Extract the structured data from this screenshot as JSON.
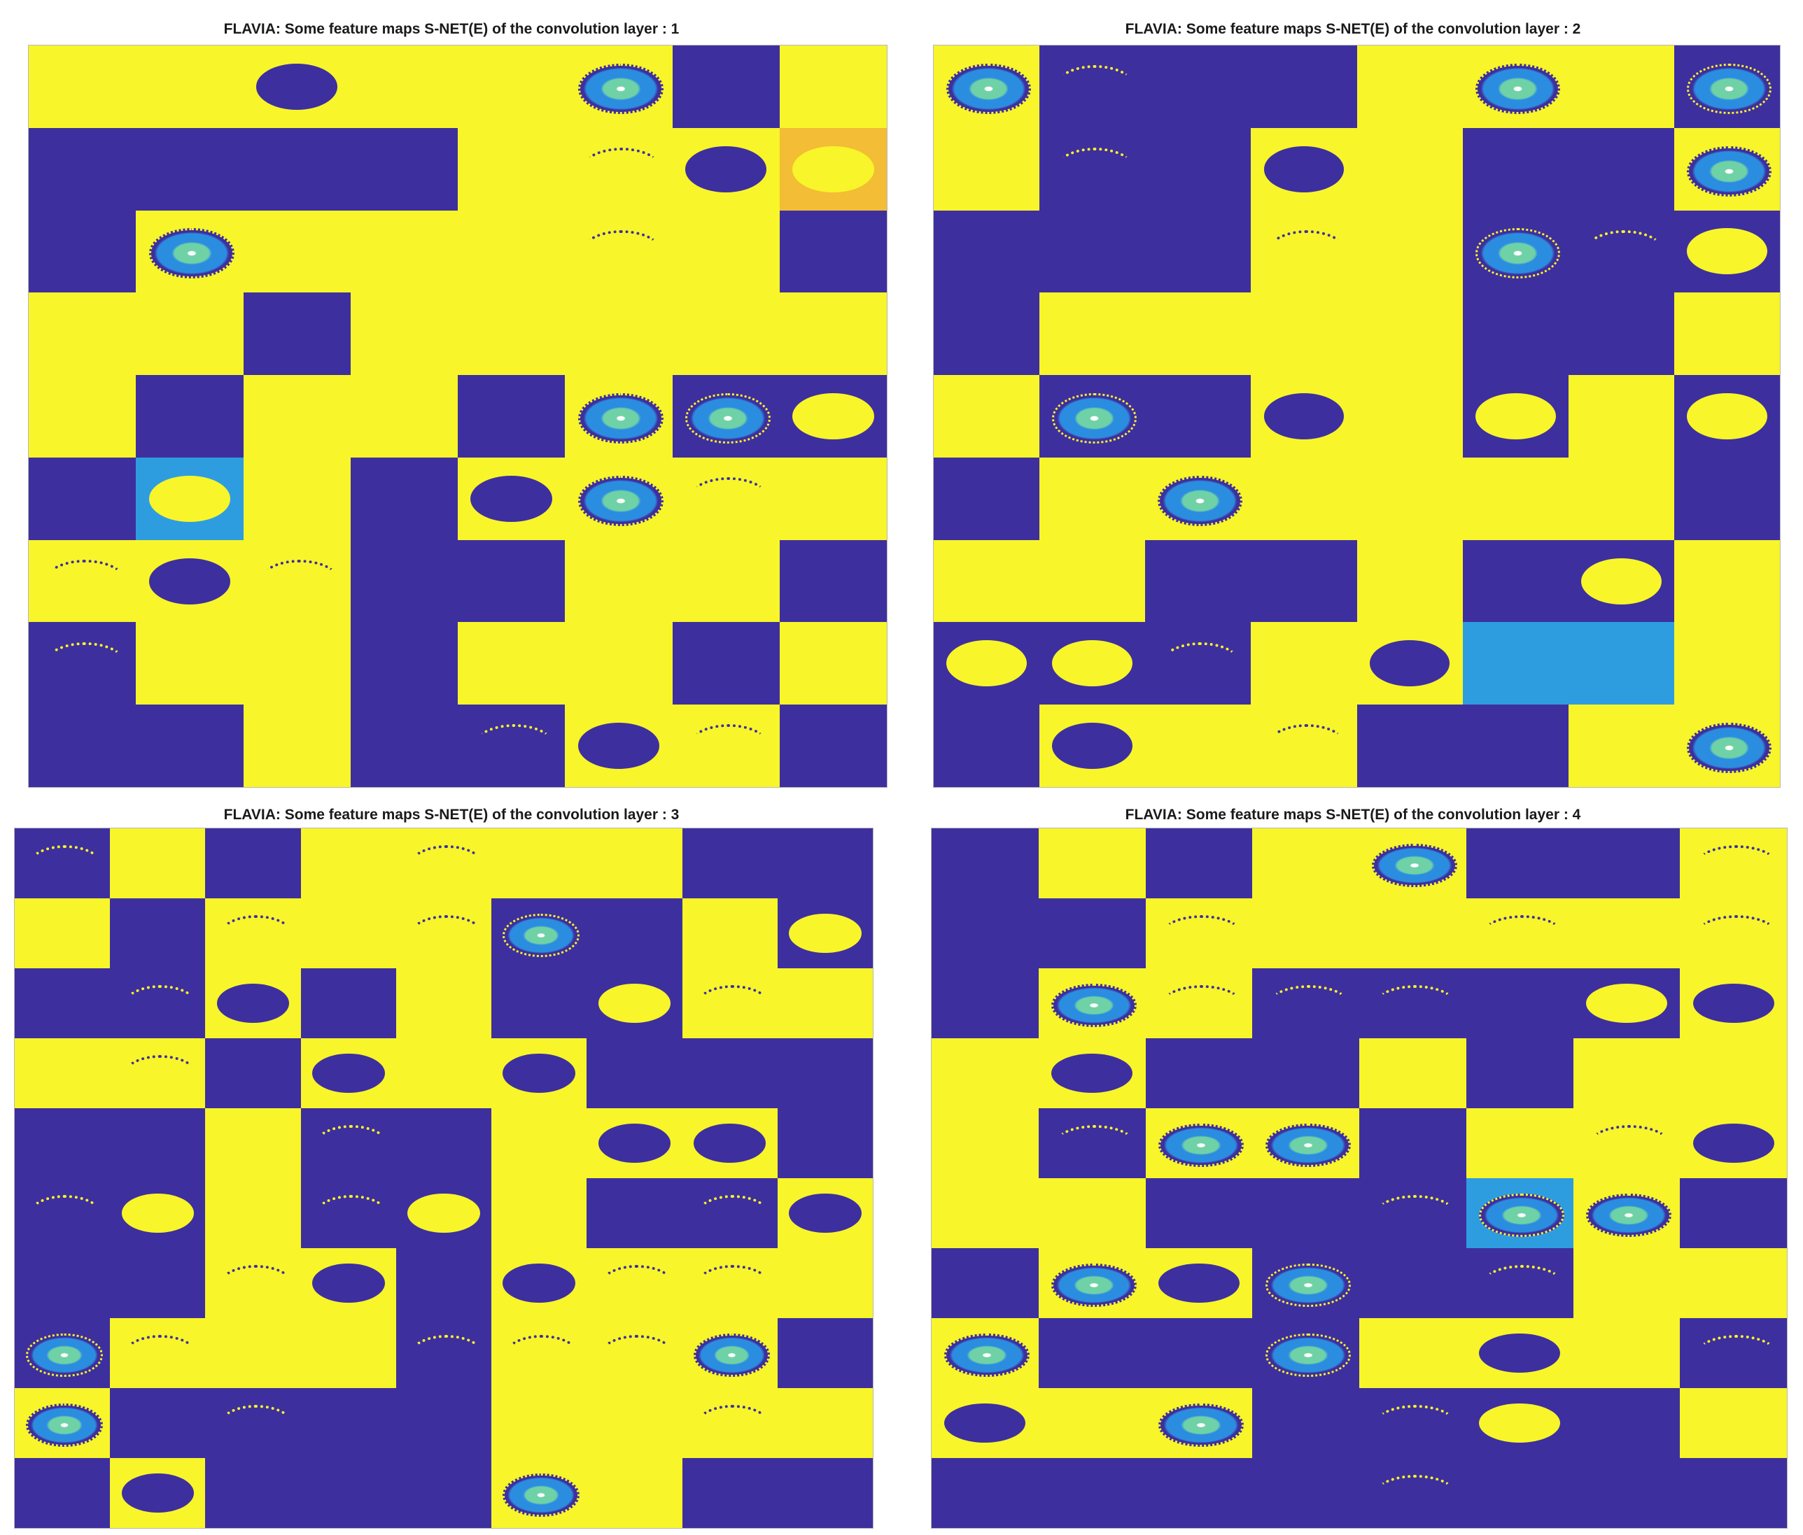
{
  "panels": [
    {
      "title": "FLAVIA: Some feature maps S-NET(E) of the convolution layer : 1",
      "rows": [
        "yyyyyydy",
        "ddddyyyo",
        "dyyyyyyd",
        "yydyyyyy",
        "ydyydydd",
        "dcydyyyy",
        "yyyddyyd",
        "dyydyydy",
        "ddyddyyd"
      ],
      "leaves": [
        "-,-,dk,-,-,mx,-,-",
        "-,-,-,-,-,ar,dk,yl",
        "-,mx,-,-,-,ar,-,-",
        "-,-,-,-,-,yl,-,-",
        "yl,-,-,-,-,mx,mx,yl",
        "-,yl,-,-,dk,mx,ar,-",
        "ar,dk,ar,-,-,-,-,-",
        "ar,yl,-,-,-,yl,-,-",
        "-,-,-,dk,ar,dk,ar,-"
      ]
    },
    {
      "title": "FLAVIA: Some feature maps S-NET(E) of the convolution layer : 2",
      "rows": [
        "ydddyyyd",
        "yddyyddy",
        "dddyyddd",
        "dyyyyddy",
        "yddyydyd",
        "dyyyyyyd",
        "yyddyddy",
        "dddyyccy",
        "dyyyddyy"
      ],
      "leaves": [
        "mx,ar,-,-,-,mx,-,mx",
        "-,ar,-,dk,-,-,-,mx",
        "-,-,-,ar,yl,mx,ar,yl",
        "-,-,yl,-,-,-,-,-",
        "-,mx,-,dk,-,yl,-,yl",
        "-,-,mx,-,-,-,yl,-",
        "-,-,-,-,-,-,yl,-",
        "yl,yl,ar,-,dk,-,-,-",
        "-,dk,-,ar,-,dk,-,mx"
      ]
    },
    {
      "title": "FLAVIA: Some feature maps S-NET(E) of the convolution layer : 3",
      "rows": [
        "dydyyyydd",
        "ydyyyddyd",
        "ddydyddyy",
        "yydyyyddd",
        "ddyddyyyd",
        "ddyddyddy",
        "ddyydyyyy",
        "dyyydyyyd",
        "yddddyyyy",
        "dydddyydd"
      ],
      "leaves": [
        "ar,-,dk,yl,ar,-,-,-,-",
        "-,-,ar,-,ar,mx,dk,-,yl",
        "-,ar,dk,-,-,-,yl,ar,-",
        "-,ar,-,dk,yl,dk,-,-,-",
        "-,-,-,ar,-,-,dk,dk,dk",
        "ar,yl,-,ar,yl,-,-,ar,dk",
        "-,-,ar,dk,-,dk,ar,ar,-",
        "mx,ar,-,-,ar,ar,ar,mx,-",
        "mx,-,ar,-,-,-,-,ar,-",
        "-,dk,-,-,dk,mx,-,-,-"
      ]
    },
    {
      "title": "FLAVIA: Some feature maps S-NET(E) of the convolution layer : 4",
      "rows": [
        "dydyyddy",
        "ddyyyyyy",
        "dyyddddy",
        "yyddydyy",
        "ydyydyyy",
        "yydddcyd",
        "dyydddyy",
        "ydddyyyd",
        "yyyddddy",
        "dddddddd"
      ],
      "leaves": [
        "-,-,-,-,mx,-,dk,ar",
        "-,dk,ar,-,-,ar,yl,ar",
        "-,mx,ar,ar,ar,-,yl,dk",
        "-,dk,-,-,-,-,-,-",
        "yl,ar,mx,mx,-,-,ar,dk",
        "-,-,-,-,ar,mx,mx,-",
        "-,mx,dk,mx,dk,ar,-,-",
        "mx,-,-,mx,-,dk,-,ar",
        "dk,-,mx,-,ar,yl,dk,-",
        "-,-,-,-,ar,-,-,-"
      ]
    }
  ],
  "colors": {
    "yellow": "#f8f52a",
    "indigo": "#3e2f9e",
    "orange": "#f3bd35",
    "cyan": "#2e9de0"
  }
}
